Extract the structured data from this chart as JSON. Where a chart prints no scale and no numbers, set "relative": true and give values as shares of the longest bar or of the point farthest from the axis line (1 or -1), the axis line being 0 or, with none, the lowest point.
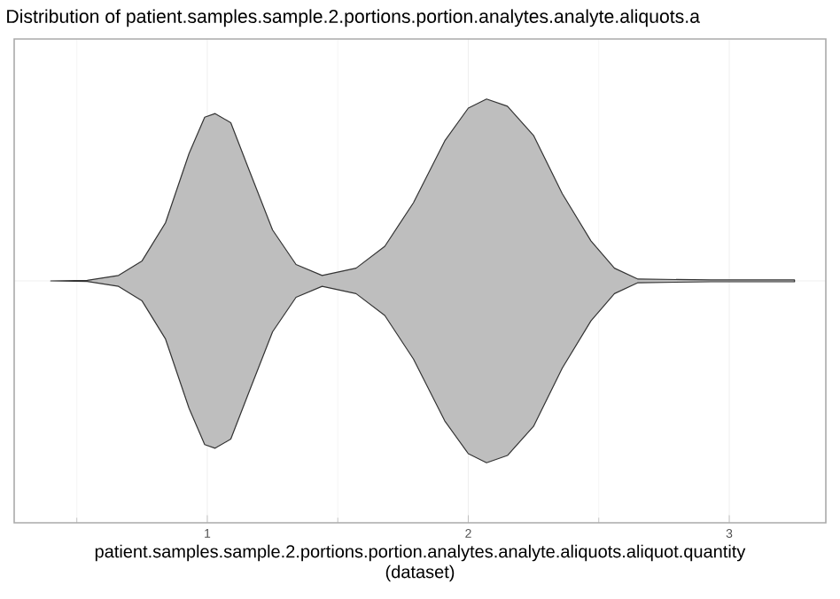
{
  "chart_data": {
    "type": "area",
    "title": "Distribution of patient.samples.sample.2.portions.portion.analytes.analyte.aliquots.a",
    "xlabel": "patient.samples.sample.2.portions.portion.analytes.analyte.aliquots.aliquot.quantity\n(dataset)",
    "x": [
      0.4,
      0.54,
      0.66,
      0.75,
      0.84,
      0.93,
      0.99,
      1.03,
      1.09,
      1.16,
      1.25,
      1.34,
      1.44,
      1.57,
      1.68,
      1.79,
      1.91,
      2.0,
      2.07,
      2.15,
      2.25,
      2.36,
      2.47,
      2.56,
      2.65,
      2.93,
      3.25
    ],
    "values": [
      0,
      0.003,
      0.03,
      0.11,
      0.32,
      0.7,
      0.9,
      0.92,
      0.87,
      0.61,
      0.28,
      0.09,
      0.03,
      0.07,
      0.19,
      0.43,
      0.77,
      0.95,
      1,
      0.96,
      0.8,
      0.48,
      0.22,
      0.07,
      0.01,
      0.005,
      0.005
    ],
    "relative": true,
    "color": "#bebebe",
    "xlim": [
      0.26,
      3.37
    ],
    "xticks": [
      1,
      2,
      3
    ],
    "grid": true,
    "tick_labels": "x"
  }
}
